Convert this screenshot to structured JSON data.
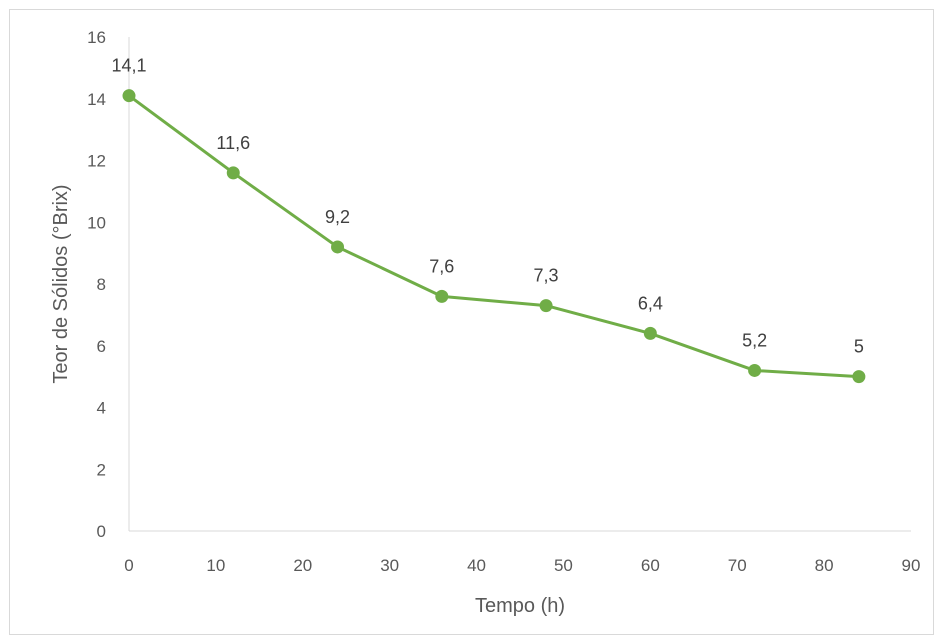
{
  "chart_data": {
    "type": "line",
    "title": "",
    "xlabel": "Tempo (h)",
    "ylabel": "Teor de Sólidos (°Brix)",
    "xlim": [
      0,
      90
    ],
    "ylim": [
      0,
      16
    ],
    "xticks": [
      0,
      10,
      20,
      30,
      40,
      50,
      60,
      70,
      80,
      90
    ],
    "yticks": [
      0,
      2,
      4,
      6,
      8,
      10,
      12,
      14,
      16
    ],
    "grid": false,
    "legend": "none",
    "series": [
      {
        "color": "#70ad47",
        "x": [
          0,
          12,
          24,
          36,
          48,
          60,
          72,
          84
        ],
        "y": [
          14.1,
          11.6,
          9.2,
          7.6,
          7.3,
          6.4,
          5.2,
          5
        ],
        "data_labels": [
          "14,1",
          "11,6",
          "9,2",
          "7,6",
          "7,3",
          "6,4",
          "5,2",
          "5"
        ]
      }
    ]
  }
}
